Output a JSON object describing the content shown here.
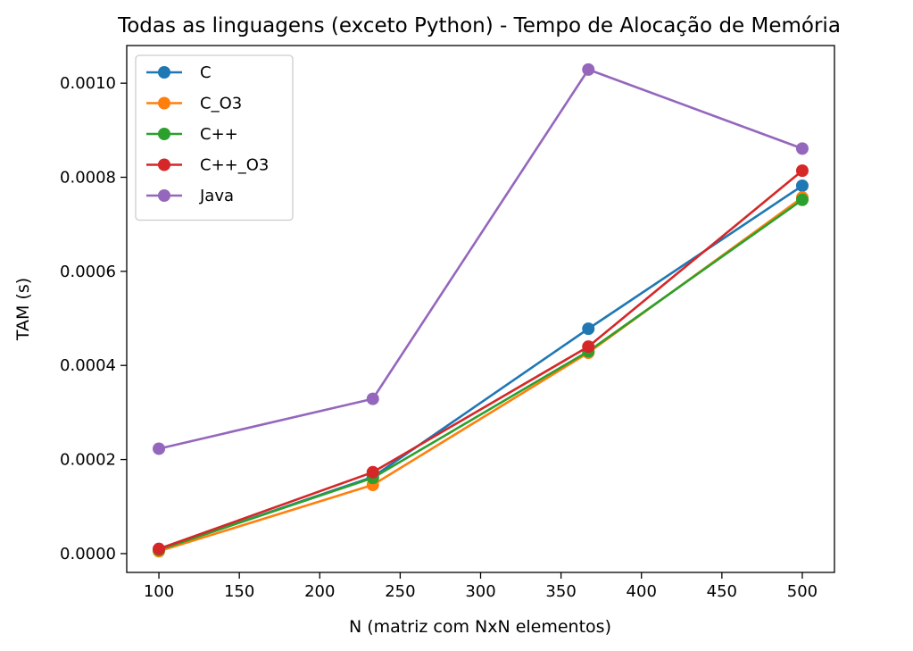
{
  "chart_data": {
    "type": "line",
    "title": "Todas as linguagens (exceto Python) - Tempo de Alocação de Memória",
    "xlabel": "N (matriz com NxN elementos)",
    "ylabel": "TAM (s)",
    "xlim": [
      80,
      520
    ],
    "ylim": [
      -4e-05,
      0.00108
    ],
    "xticks": [
      100,
      150,
      200,
      250,
      300,
      350,
      400,
      450,
      500
    ],
    "xtick_labels": [
      "100",
      "150",
      "200",
      "250",
      "300",
      "350",
      "400",
      "450",
      "500"
    ],
    "yticks": [
      0,
      0.0002,
      0.0004,
      0.0006,
      0.0008,
      0.001
    ],
    "ytick_labels": [
      "0.0000",
      "0.0002",
      "0.0004",
      "0.0006",
      "0.0008",
      "0.0010"
    ],
    "grid": false,
    "legend_position": "top-left",
    "x": [
      100,
      233,
      367,
      500
    ],
    "series": [
      {
        "name": "C",
        "color": "#1f77b4",
        "values": [
          8e-06,
          0.000163,
          0.000478,
          0.000782
        ]
      },
      {
        "name": "C_O3",
        "color": "#ff7f0e",
        "values": [
          5e-06,
          0.000146,
          0.000427,
          0.000757
        ]
      },
      {
        "name": "C++",
        "color": "#2ca02c",
        "values": [
          8e-06,
          0.000161,
          0.00043,
          0.000752
        ]
      },
      {
        "name": "C++_O3",
        "color": "#d62728",
        "values": [
          1e-05,
          0.000173,
          0.00044,
          0.000814
        ]
      },
      {
        "name": "Java",
        "color": "#9467bd",
        "values": [
          0.000223,
          0.000329,
          0.001029,
          0.000861
        ]
      }
    ]
  }
}
